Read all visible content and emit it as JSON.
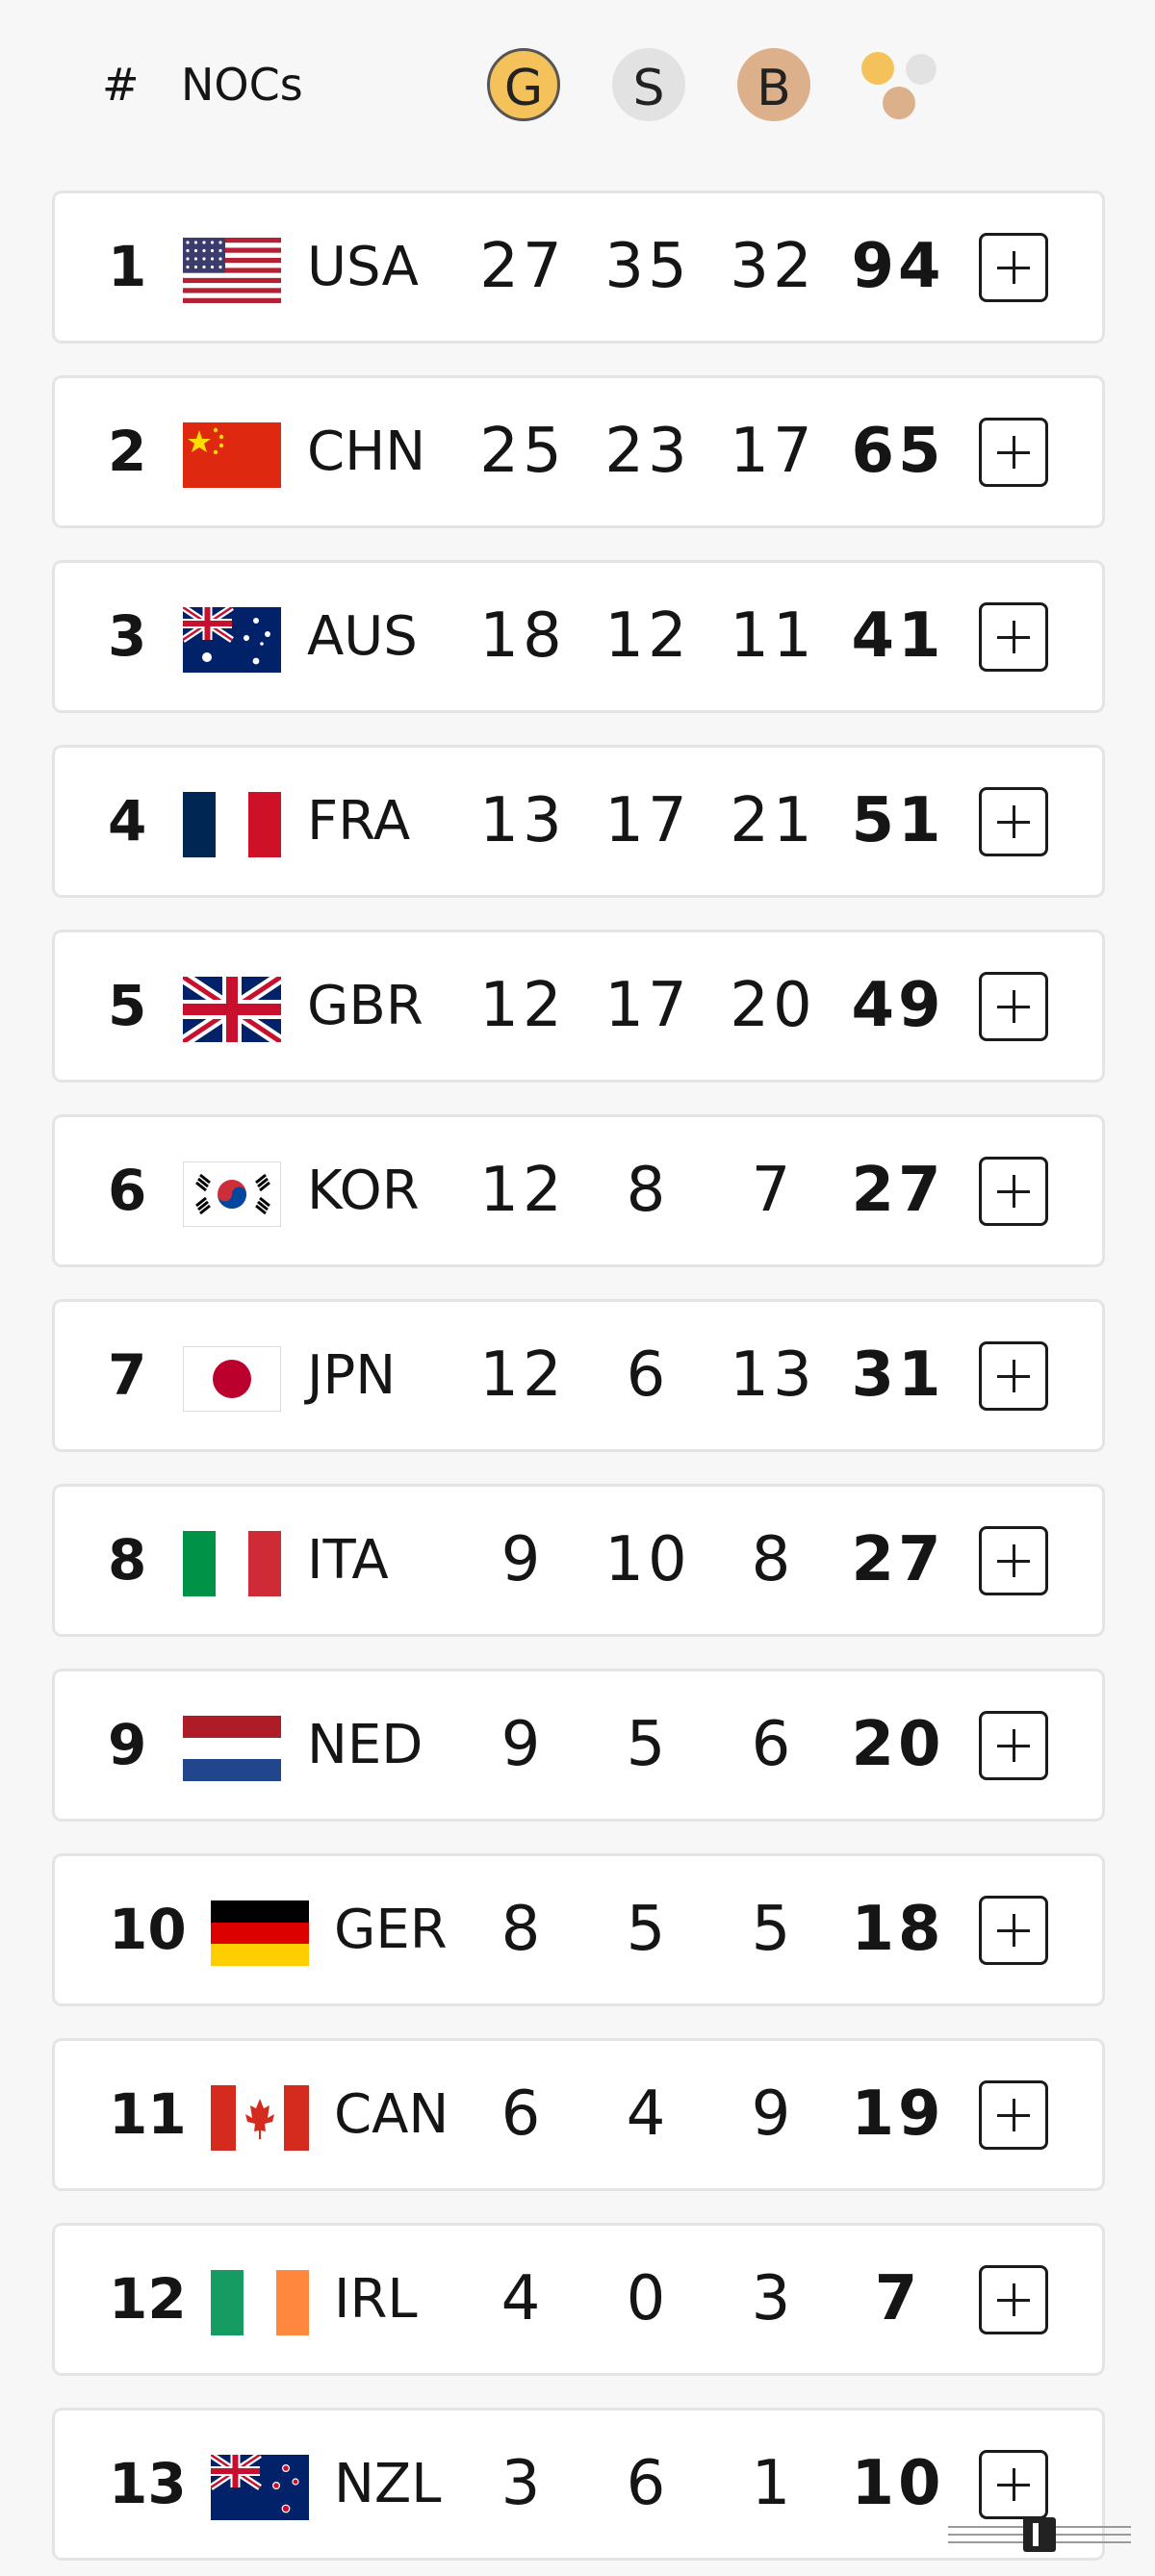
{
  "header": {
    "rank_label": "#",
    "noc_label": "NOCs",
    "gold_label": "G",
    "silver_label": "S",
    "bronze_label": "B",
    "total_icon": "total-medals-icon"
  },
  "colors": {
    "gold": "#f4c15a",
    "silver": "#e2e2e2",
    "bronze": "#dcb08a",
    "row_border": "#e4e4e4",
    "background": "#f7f7f7"
  },
  "rows": [
    {
      "rank": "1",
      "code": "USA",
      "gold": "27",
      "silver": "35",
      "bronze": "32",
      "total": "94",
      "flag": "usa-flag-icon"
    },
    {
      "rank": "2",
      "code": "CHN",
      "gold": "25",
      "silver": "23",
      "bronze": "17",
      "total": "65",
      "flag": "china-flag-icon"
    },
    {
      "rank": "3",
      "code": "AUS",
      "gold": "18",
      "silver": "12",
      "bronze": "11",
      "total": "41",
      "flag": "australia-flag-icon"
    },
    {
      "rank": "4",
      "code": "FRA",
      "gold": "13",
      "silver": "17",
      "bronze": "21",
      "total": "51",
      "flag": "france-flag-icon"
    },
    {
      "rank": "5",
      "code": "GBR",
      "gold": "12",
      "silver": "17",
      "bronze": "20",
      "total": "49",
      "flag": "uk-flag-icon"
    },
    {
      "rank": "6",
      "code": "KOR",
      "gold": "12",
      "silver": "8",
      "bronze": "7",
      "total": "27",
      "flag": "korea-flag-icon"
    },
    {
      "rank": "7",
      "code": "JPN",
      "gold": "12",
      "silver": "6",
      "bronze": "13",
      "total": "31",
      "flag": "japan-flag-icon"
    },
    {
      "rank": "8",
      "code": "ITA",
      "gold": "9",
      "silver": "10",
      "bronze": "8",
      "total": "27",
      "flag": "italy-flag-icon"
    },
    {
      "rank": "9",
      "code": "NED",
      "gold": "9",
      "silver": "5",
      "bronze": "6",
      "total": "20",
      "flag": "netherlands-flag-icon"
    },
    {
      "rank": "10",
      "code": "GER",
      "gold": "8",
      "silver": "5",
      "bronze": "5",
      "total": "18",
      "flag": "germany-flag-icon"
    },
    {
      "rank": "11",
      "code": "CAN",
      "gold": "6",
      "silver": "4",
      "bronze": "9",
      "total": "19",
      "flag": "canada-flag-icon"
    },
    {
      "rank": "12",
      "code": "IRL",
      "gold": "4",
      "silver": "0",
      "bronze": "3",
      "total": "7",
      "flag": "ireland-flag-icon"
    },
    {
      "rank": "13",
      "code": "NZL",
      "gold": "3",
      "silver": "6",
      "bronze": "1",
      "total": "10",
      "flag": "new-zealand-flag-icon"
    }
  ],
  "expand_icon": "plus-icon",
  "watermark_icon": "watermark-logo-icon"
}
